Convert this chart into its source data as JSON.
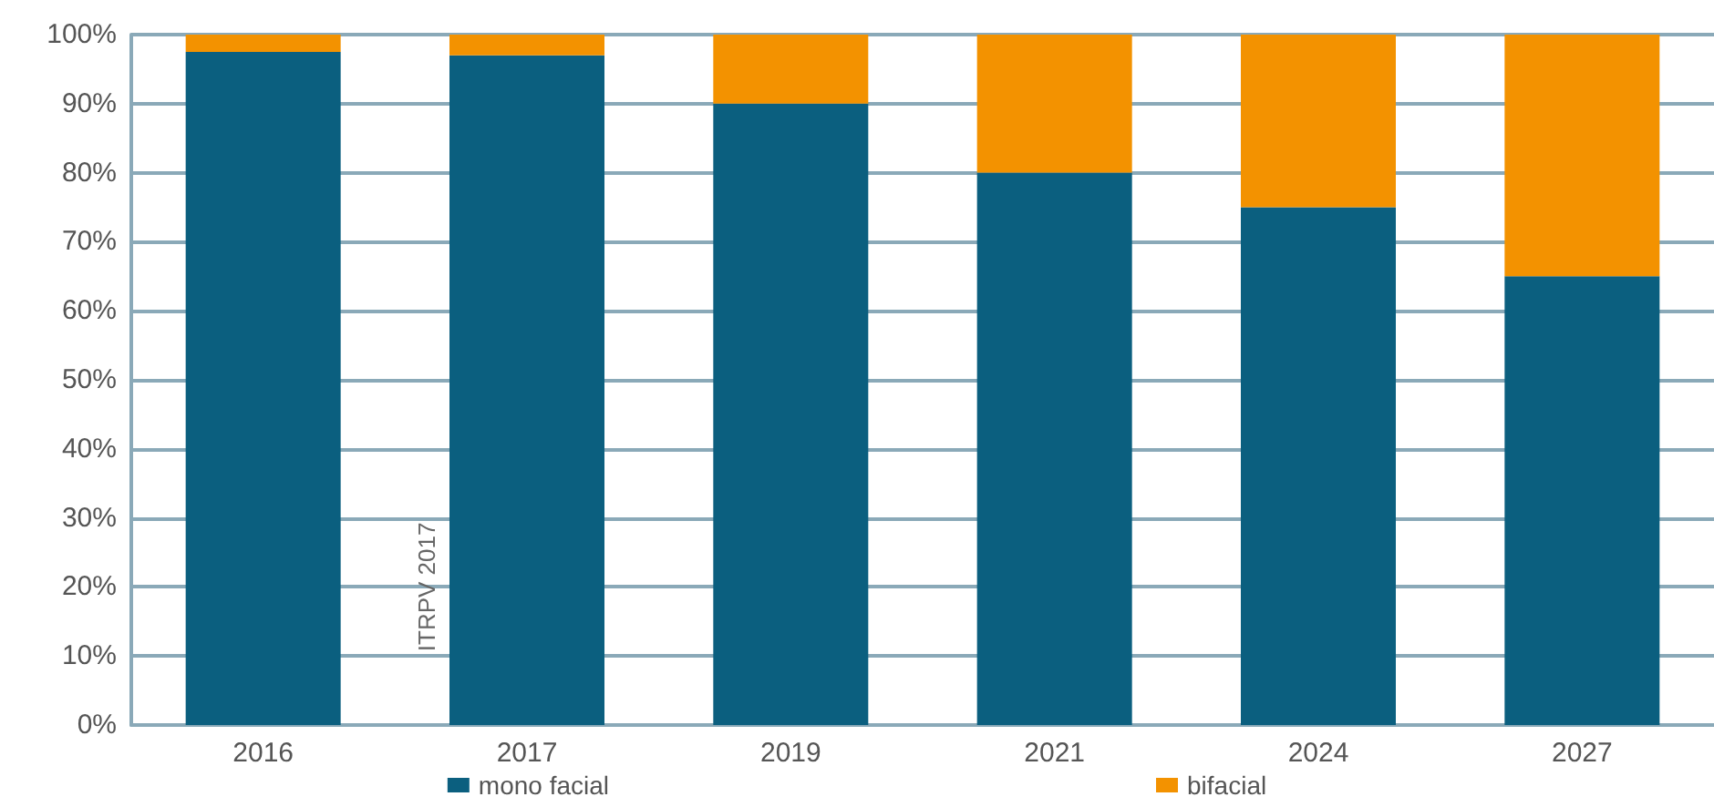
{
  "chart_data": {
    "type": "bar",
    "stacked": true,
    "categories": [
      "2016",
      "2017",
      "2019",
      "2021",
      "2024",
      "2027"
    ],
    "series": [
      {
        "name": "mono facial",
        "color": "#0b5f7f",
        "values": [
          97.5,
          97,
          90,
          80,
          75,
          65
        ]
      },
      {
        "name": "bifacial",
        "color": "#f39200",
        "values": [
          2.5,
          3,
          10,
          20,
          25,
          35
        ]
      }
    ],
    "ylim": [
      0,
      100
    ],
    "yticks": [
      {
        "value": 0,
        "label": "0%"
      },
      {
        "value": 10,
        "label": "10%"
      },
      {
        "value": 20,
        "label": "20%"
      },
      {
        "value": 30,
        "label": "30%"
      },
      {
        "value": 40,
        "label": "40%"
      },
      {
        "value": 50,
        "label": "50%"
      },
      {
        "value": 60,
        "label": "60%"
      },
      {
        "value": 70,
        "label": "70%"
      },
      {
        "value": 80,
        "label": "80%"
      },
      {
        "value": 90,
        "label": "90%"
      },
      {
        "value": 100,
        "label": "100%"
      }
    ],
    "grid": "y",
    "legend": "bottom",
    "annotations": [
      "ITRPV 2017"
    ]
  }
}
